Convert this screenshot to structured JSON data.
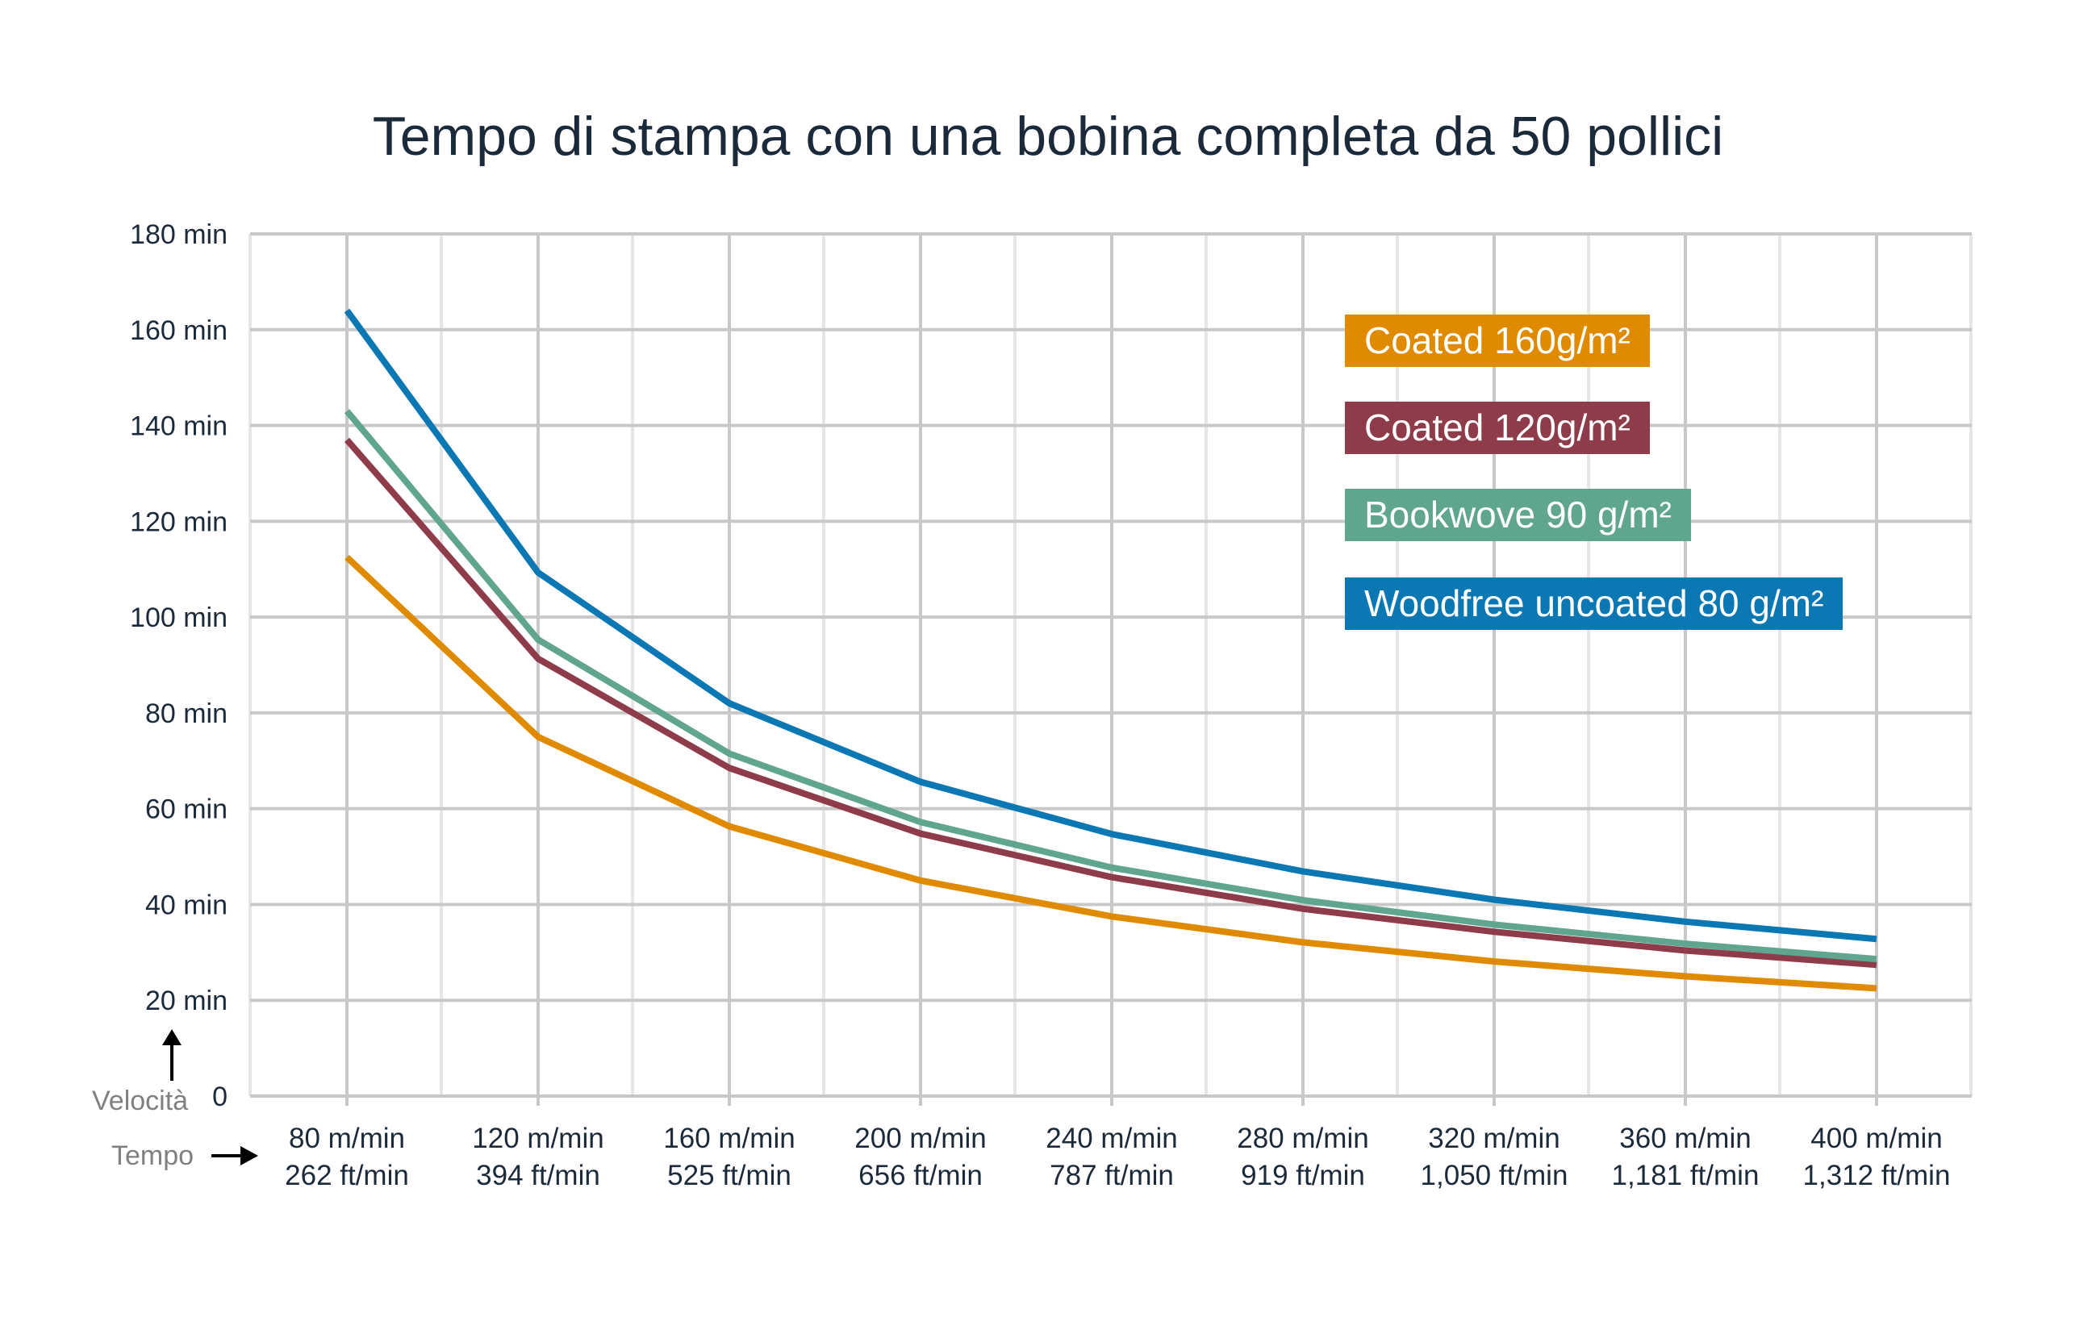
{
  "chart_data": {
    "type": "line",
    "title": "Tempo di stampa con una bobina completa da 50 pollici",
    "ylabel": "Velocità",
    "xlabel": "Tempo",
    "categories": [
      [
        "80 m/min",
        "262 ft/min"
      ],
      [
        "120 m/min",
        "394 ft/min"
      ],
      [
        "160 m/min",
        "525 ft/min"
      ],
      [
        "200 m/min",
        "656 ft/min"
      ],
      [
        "240 m/min",
        "787 ft/min"
      ],
      [
        "280 m/min",
        "919 ft/min"
      ],
      [
        "320 m/min",
        "1,050 ft/min"
      ],
      [
        "360 m/min",
        "1,181 ft/min"
      ],
      [
        "400 m/min",
        "1,312 ft/min"
      ]
    ],
    "ylim": [
      0,
      180
    ],
    "yticks": [
      0,
      20,
      40,
      60,
      80,
      100,
      120,
      140,
      160,
      180
    ],
    "ytick_labels": [
      "0",
      "20 min",
      "40 min",
      "60 min",
      "80 min",
      "100 min",
      "120 min",
      "140 min",
      "160 min",
      "180 min"
    ],
    "grid": true,
    "legend_placement": "top-right",
    "series": [
      {
        "name": "Coated 160g/m²",
        "color": "#e08a00",
        "values": [
          112.5,
          75,
          56.3,
          45,
          37.5,
          32.1,
          28.1,
          25,
          22.5
        ]
      },
      {
        "name": "Coated 120g/m²",
        "color": "#8e3b4a",
        "values": [
          137,
          91.3,
          68.5,
          54.8,
          45.7,
          39.1,
          34.3,
          30.4,
          27.4
        ]
      },
      {
        "name": "Bookwove 90 g/m²",
        "color": "#5fa590",
        "values": [
          143,
          95.3,
          71.5,
          57.2,
          47.7,
          40.9,
          35.8,
          31.8,
          28.6
        ]
      },
      {
        "name": "Woodfree uncoated 80 g/m²",
        "color": "#0b78b4",
        "values": [
          164,
          109.3,
          82,
          65.6,
          54.7,
          46.9,
          41,
          36.4,
          32.8
        ]
      }
    ]
  }
}
